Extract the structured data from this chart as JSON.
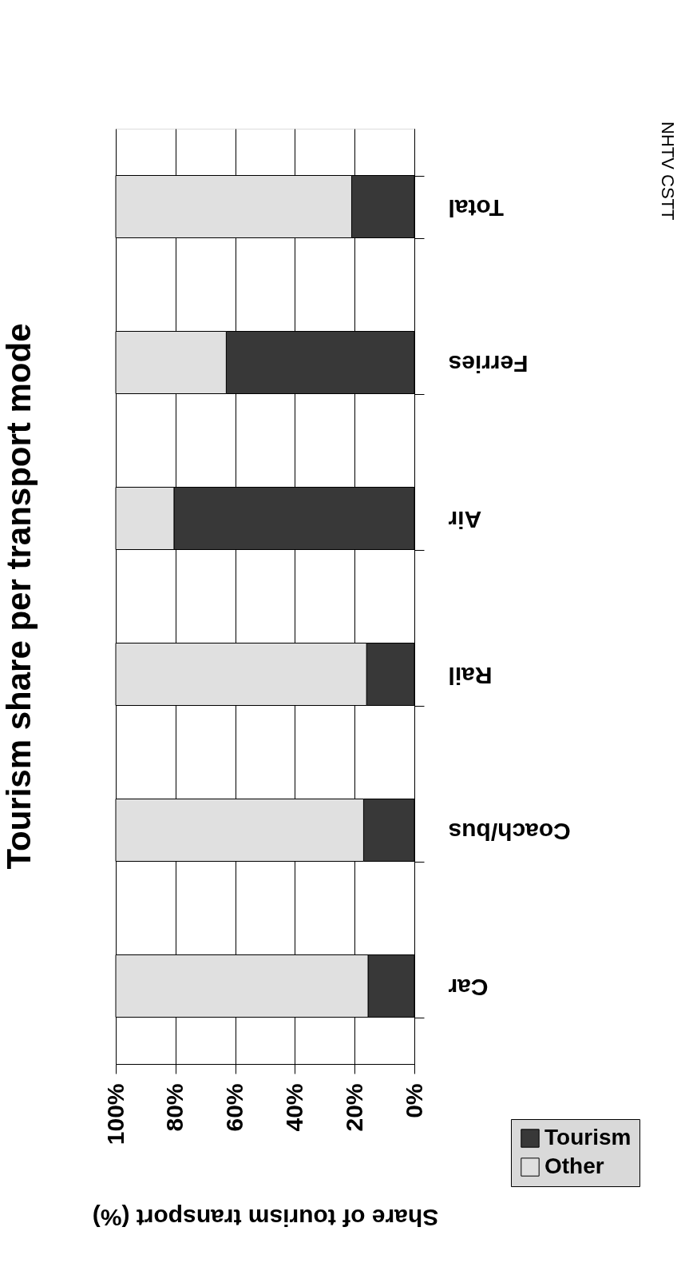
{
  "chart_data": {
    "type": "bar",
    "orientation": "horizontal",
    "stacked": true,
    "title": "Tourism share per transport mode",
    "xlabel": "Share of tourism transport (%)",
    "categories": [
      "Total",
      "Ferries",
      "Air",
      "Rail",
      "Coach/bus",
      "Car"
    ],
    "series": [
      {
        "name": "Tourism",
        "color": "#383838",
        "values": [
          21,
          63,
          80.5,
          16,
          17,
          15.5
        ]
      },
      {
        "name": "Other",
        "color": "#e0e0e0",
        "values": [
          79,
          37,
          19.5,
          84,
          83,
          84.5
        ]
      }
    ],
    "xlim": [
      100,
      0
    ],
    "xticks": [
      {
        "value": 100,
        "label": "100%"
      },
      {
        "value": 80,
        "label": "80%"
      },
      {
        "value": 60,
        "label": "60%"
      },
      {
        "value": 40,
        "label": "40%"
      },
      {
        "value": 20,
        "label": "20%"
      },
      {
        "value": 0,
        "label": "0%"
      }
    ],
    "grid": "x",
    "legend": "right",
    "annotations": [
      "NHTV CSTT"
    ]
  }
}
